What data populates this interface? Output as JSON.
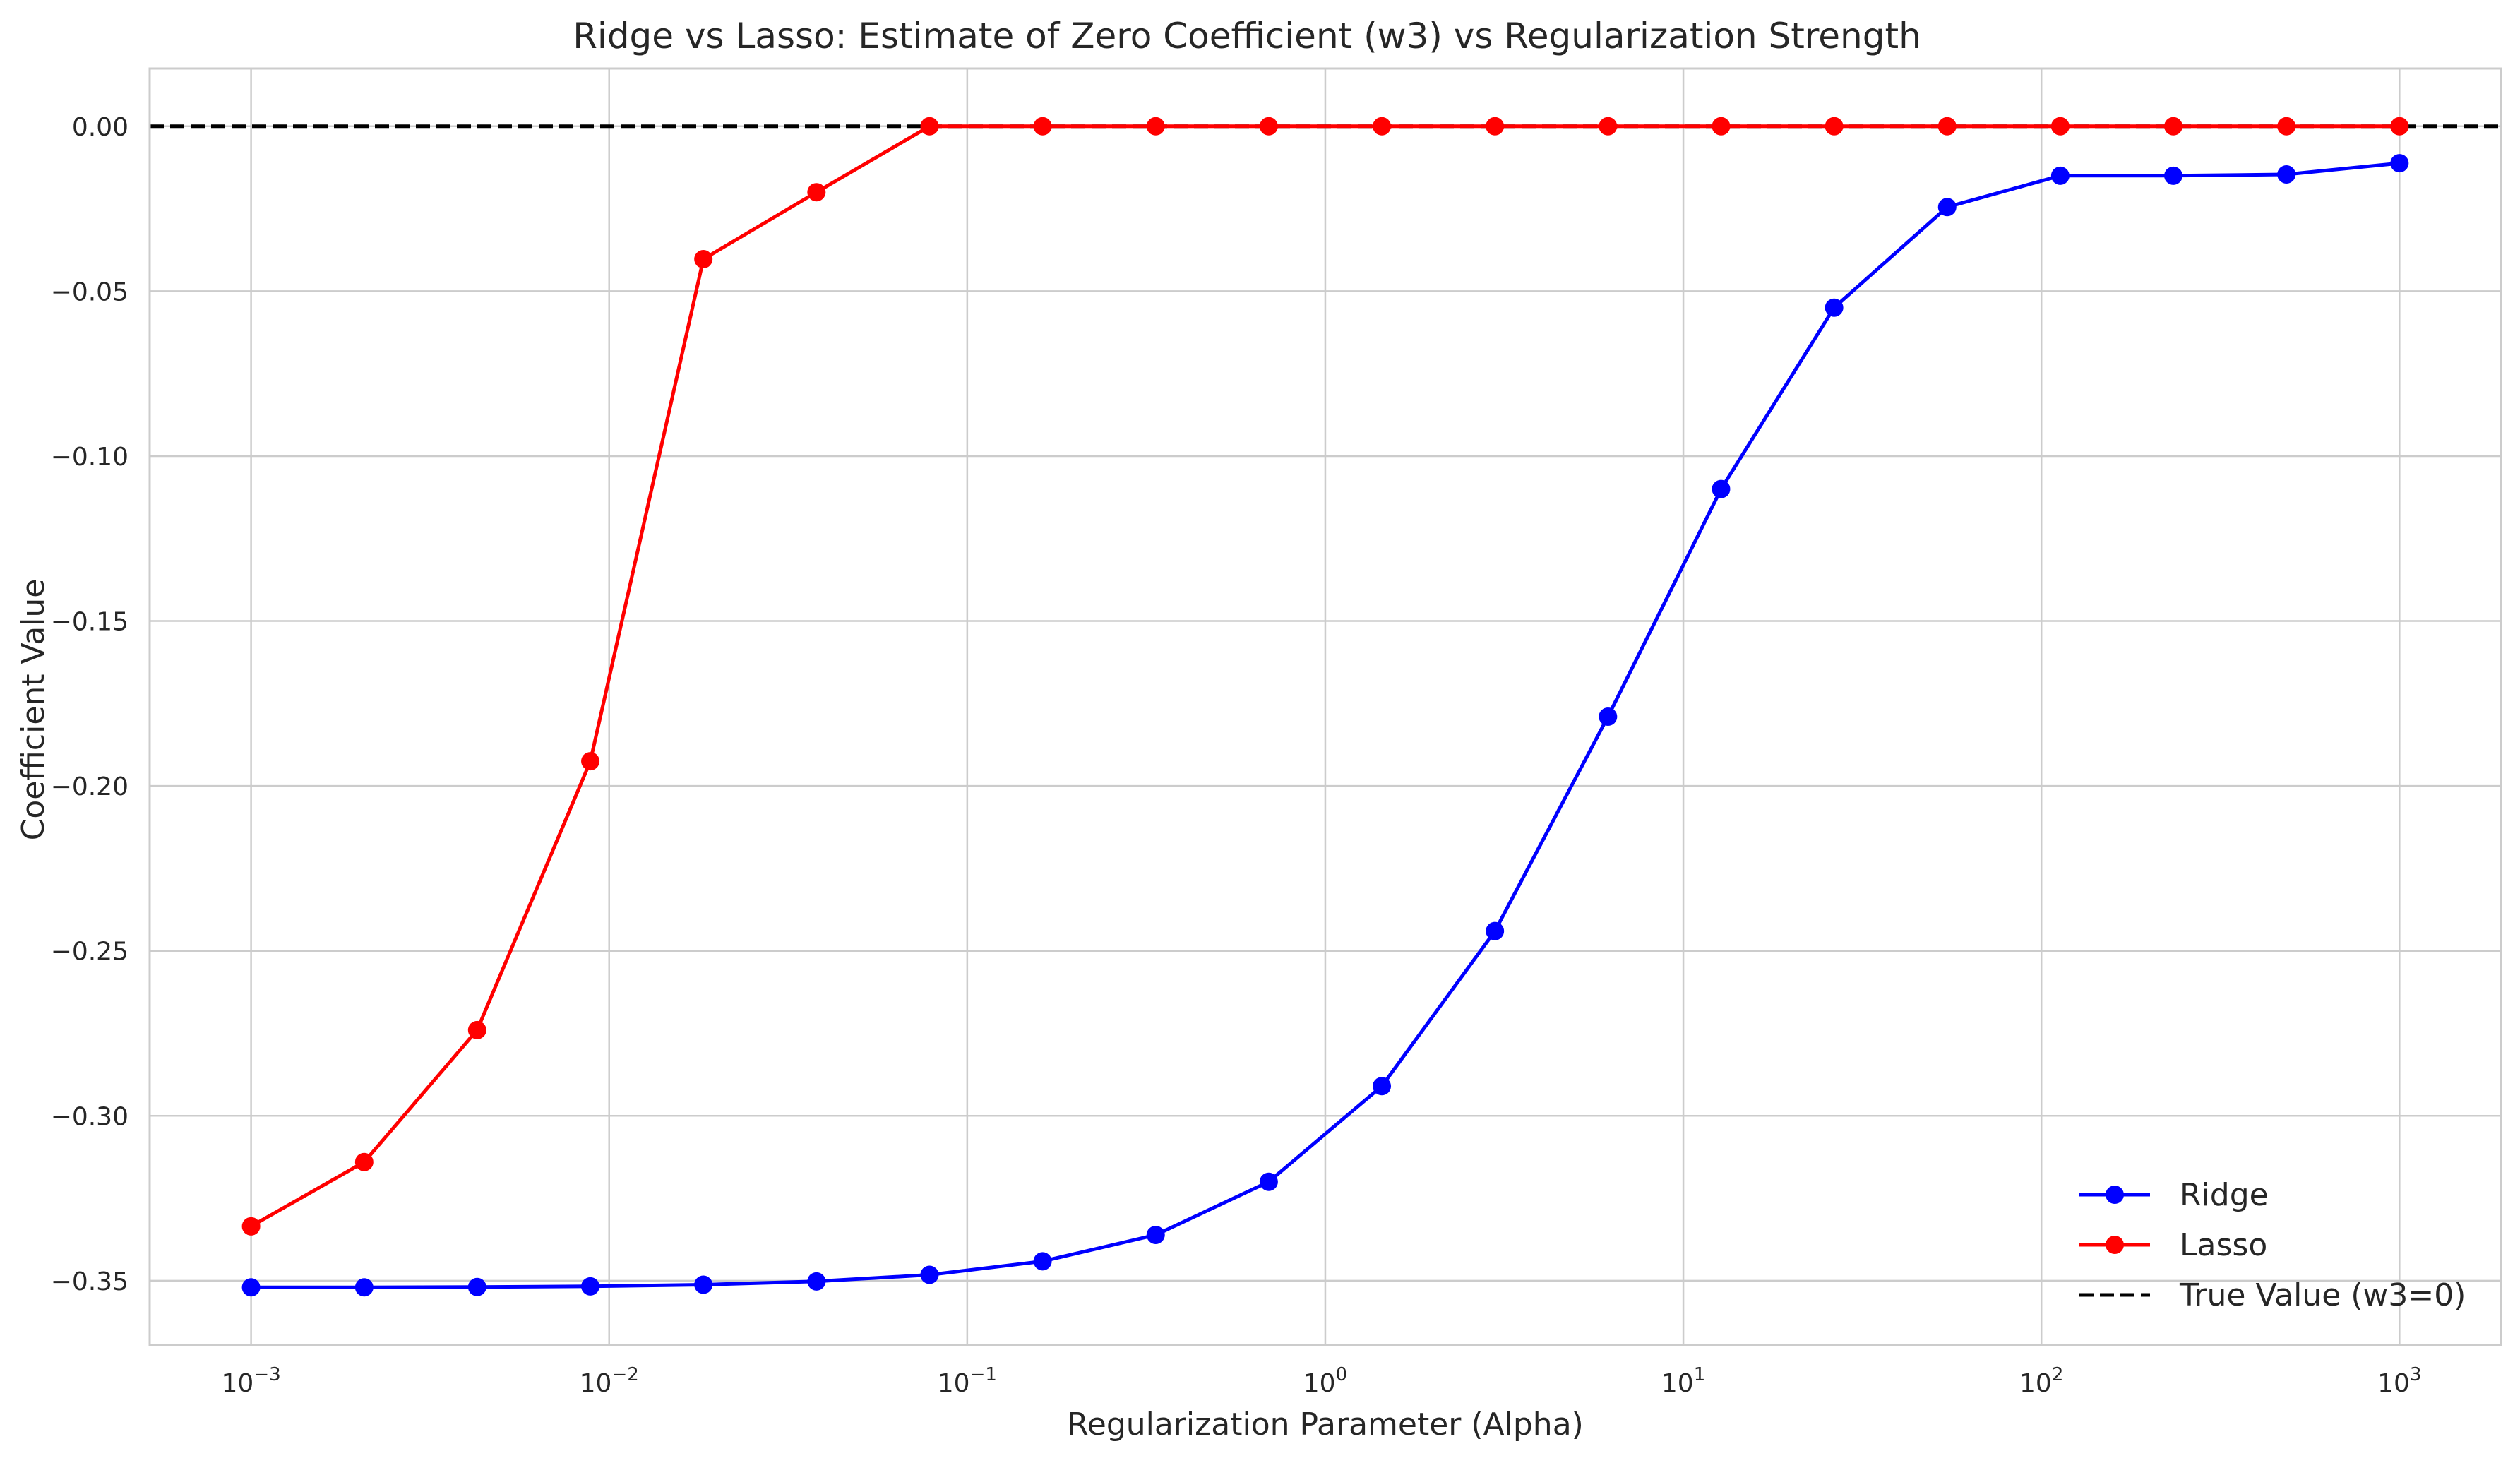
{
  "chart_data": {
    "type": "line",
    "title": "Ridge vs Lasso: Estimate of Zero Coefficient (w3) vs Regularization Strength",
    "xlabel": "Regularization Parameter (Alpha)",
    "ylabel": "Coefficient Value",
    "xscale": "log",
    "xlim": [
      0.000521,
      1920
    ],
    "ylim": [
      -0.3695,
      0.0175
    ],
    "grid": true,
    "legend_position": "lower-right",
    "x_ticks": [
      {
        "value": 0.001,
        "base": "10",
        "exp": "−3"
      },
      {
        "value": 0.01,
        "base": "10",
        "exp": "−2"
      },
      {
        "value": 0.1,
        "base": "10",
        "exp": "−1"
      },
      {
        "value": 1,
        "base": "10",
        "exp": "0"
      },
      {
        "value": 10,
        "base": "10",
        "exp": "1"
      },
      {
        "value": 100,
        "base": "10",
        "exp": "2"
      },
      {
        "value": 1000,
        "base": "10",
        "exp": "3"
      }
    ],
    "y_ticks": [
      {
        "value": 0.0,
        "label": "0.00"
      },
      {
        "value": -0.05,
        "label": "−0.05"
      },
      {
        "value": -0.1,
        "label": "−0.10"
      },
      {
        "value": -0.15,
        "label": "−0.15"
      },
      {
        "value": -0.2,
        "label": "−0.20"
      },
      {
        "value": -0.25,
        "label": "−0.25"
      },
      {
        "value": -0.3,
        "label": "−0.30"
      },
      {
        "value": -0.35,
        "label": "−0.35"
      }
    ],
    "x": [
      0.001,
      0.00207,
      0.00428,
      0.00886,
      0.01833,
      0.03793,
      0.07848,
      0.16238,
      0.33598,
      0.69519,
      1.43845,
      2.97635,
      6.15848,
      12.74275,
      26.36651,
      54.55595,
      112.8838,
      233.5721,
      483.293,
      1000
    ],
    "series": [
      {
        "name": "Ridge",
        "color": "#0000ff",
        "marker": "circle",
        "values": [
          -0.352,
          -0.352,
          -0.3519,
          -0.3517,
          -0.3512,
          -0.3502,
          -0.3482,
          -0.3441,
          -0.3361,
          -0.32,
          -0.291,
          -0.244,
          -0.179,
          -0.11,
          -0.055,
          -0.0245,
          -0.015,
          -0.015,
          -0.0146,
          -0.0112
        ]
      },
      {
        "name": "Lasso",
        "color": "#ff0000",
        "marker": "circle",
        "values": [
          -0.3335,
          -0.314,
          -0.274,
          -0.1925,
          -0.0403,
          -0.02,
          0.0,
          0.0,
          0.0,
          0.0,
          0.0,
          0.0,
          0.0,
          0.0,
          0.0,
          0.0,
          0.0,
          0.0,
          0.0,
          0.0
        ]
      },
      {
        "name": "True Value (w3=0)",
        "color": "#000000",
        "style": "dashed",
        "value": 0.0
      }
    ]
  }
}
